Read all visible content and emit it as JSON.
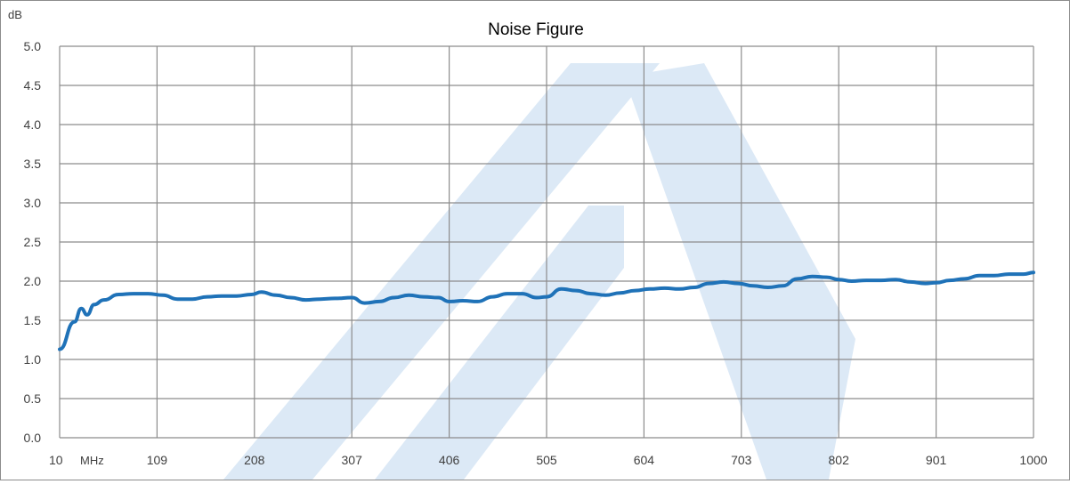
{
  "chart_data": {
    "type": "line",
    "title": "Noise Figure",
    "y_unit": "dB",
    "x_unit": "MHz",
    "xlim": [
      10,
      1000
    ],
    "ylim": [
      0,
      5.0
    ],
    "x_ticks": [
      10,
      109,
      208,
      307,
      406,
      505,
      604,
      703,
      802,
      901,
      1000
    ],
    "y_ticks": [
      "0.0",
      "0.5",
      "1.0",
      "1.5",
      "2.0",
      "2.5",
      "3.0",
      "3.5",
      "4.0",
      "4.5",
      "5.0"
    ],
    "grid": true,
    "legend": "none",
    "line_color": "#1f72b8",
    "grid_color": "#8c8c8c",
    "watermark_color": "#dce9f6",
    "series": [
      {
        "x": [
          10,
          25,
          32,
          38,
          45,
          55,
          70,
          85,
          100,
          115,
          130,
          145,
          160,
          175,
          190,
          205,
          215,
          230,
          245,
          260,
          275,
          290,
          307,
          320,
          335,
          350,
          365,
          380,
          395,
          406,
          420,
          435,
          450,
          465,
          480,
          495,
          505,
          520,
          535,
          550,
          565,
          580,
          595,
          610,
          625,
          640,
          655,
          670,
          685,
          700,
          715,
          730,
          745,
          760,
          775,
          790,
          802,
          815,
          830,
          845,
          860,
          875,
          890,
          901,
          915,
          930,
          945,
          960,
          975,
          990,
          1000
        ],
        "y": [
          1.13,
          1.48,
          1.65,
          1.57,
          1.7,
          1.76,
          1.83,
          1.84,
          1.84,
          1.82,
          1.77,
          1.77,
          1.8,
          1.81,
          1.81,
          1.83,
          1.86,
          1.82,
          1.79,
          1.76,
          1.77,
          1.78,
          1.79,
          1.72,
          1.74,
          1.79,
          1.82,
          1.8,
          1.79,
          1.74,
          1.75,
          1.74,
          1.8,
          1.84,
          1.84,
          1.79,
          1.8,
          1.9,
          1.88,
          1.84,
          1.82,
          1.85,
          1.88,
          1.9,
          1.91,
          1.9,
          1.92,
          1.97,
          1.99,
          1.97,
          1.94,
          1.92,
          1.94,
          2.03,
          2.06,
          2.05,
          2.02,
          2.0,
          2.01,
          2.01,
          2.02,
          1.99,
          1.97,
          1.98,
          2.01,
          2.03,
          2.07,
          2.07,
          2.09,
          2.09,
          2.11
        ]
      }
    ]
  }
}
